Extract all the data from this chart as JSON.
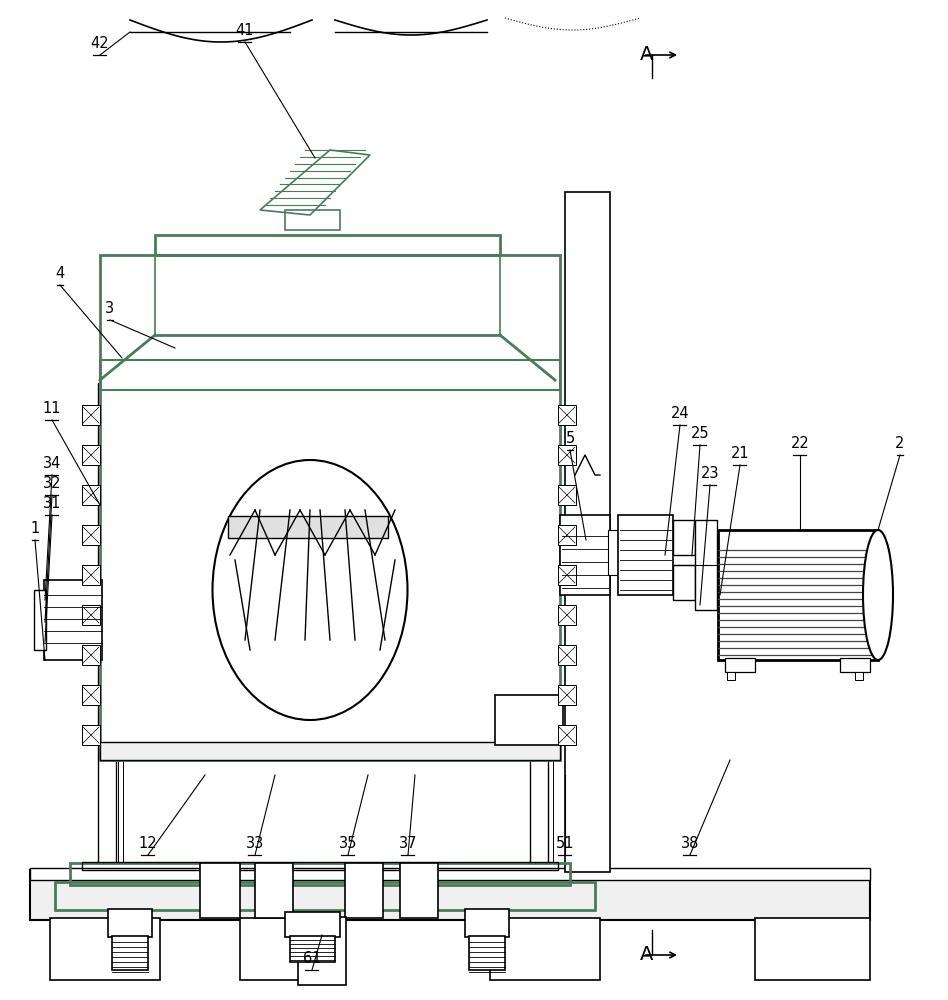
{
  "bg_color": "#ffffff",
  "line_color": "#000000",
  "green_color": "#4a7c59",
  "figsize": [
    9.48,
    10.0
  ],
  "dpi": 100
}
